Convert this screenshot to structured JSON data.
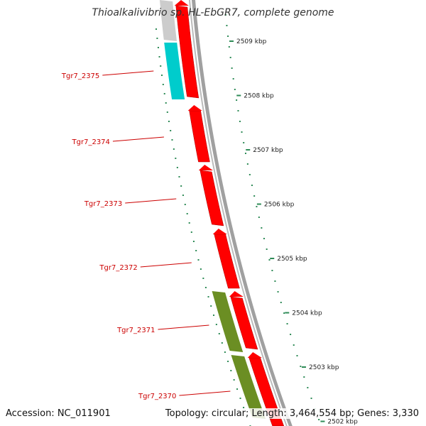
{
  "title": "Thioalkalivibrio sp. HL-EbGR7, complete genome",
  "accession": "Accession: NC_011901",
  "summary": "Topology: circular; Length: 3,464,554 bp; Genes: 3,330",
  "colors": {
    "forward_gene": "#ff0000",
    "reverse_gene": "#ff0000",
    "cyan_feature": "#00cccc",
    "olive_feature": "#6b8e23",
    "tick": "#2e8b57",
    "backbone": "#808080",
    "label": "#cc0000"
  },
  "scale_ticks": [
    "2509 kbp",
    "2508 kbp",
    "2507 kbp",
    "2506 kbp",
    "2505 kbp",
    "2504 kbp",
    "2503 kbp",
    "2502 kbp"
  ],
  "genes": [
    {
      "label": "Tgr7_2375"
    },
    {
      "label": "Tgr7_2374"
    },
    {
      "label": "Tgr7_2373"
    },
    {
      "label": "Tgr7_2372"
    },
    {
      "label": "Tgr7_2371"
    },
    {
      "label": "Tgr7_2370"
    }
  ]
}
